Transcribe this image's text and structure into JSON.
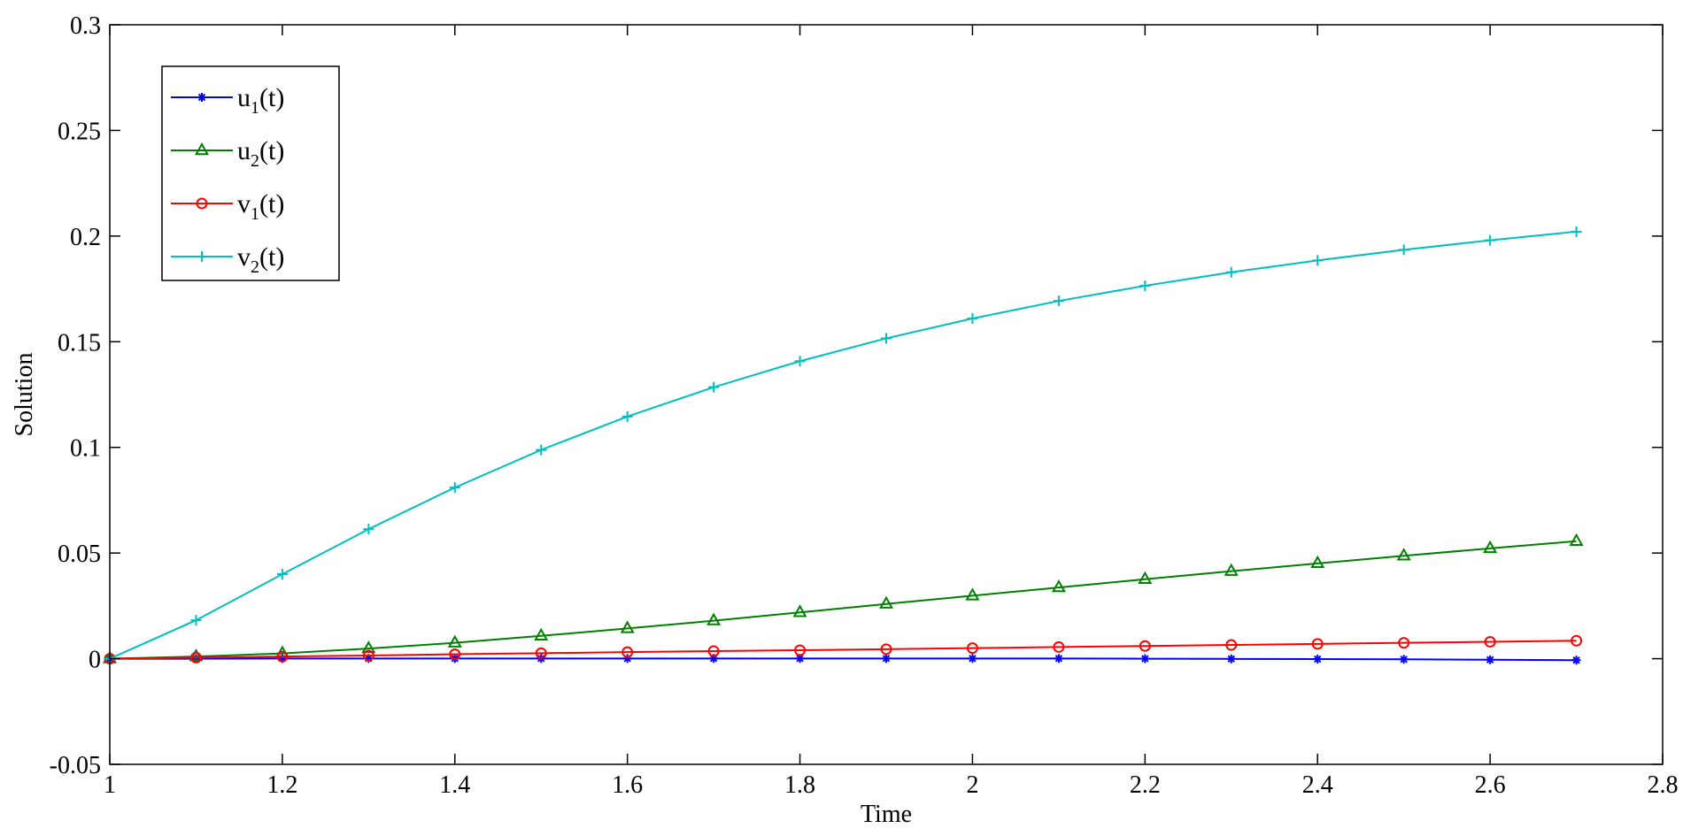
{
  "chart_data": {
    "type": "line",
    "title": "",
    "xlabel": "Time",
    "ylabel": "Solution",
    "xlim": [
      1,
      2.8
    ],
    "ylim": [
      -0.05,
      0.3
    ],
    "xticks": [
      1,
      1.2,
      1.4,
      1.6,
      1.8,
      2,
      2.2,
      2.4,
      2.6,
      2.8
    ],
    "xtick_labels": [
      "1",
      "1.2",
      "1.4",
      "1.6",
      "1.8",
      "2",
      "2.2",
      "2.4",
      "2.6",
      "2.8"
    ],
    "yticks": [
      -0.05,
      0,
      0.05,
      0.1,
      0.15,
      0.2,
      0.25,
      0.3
    ],
    "ytick_labels": [
      "-0.05",
      "0",
      "0.05",
      "0.1",
      "0.15",
      "0.2",
      "0.25",
      "0.3"
    ],
    "grid": false,
    "legend_position": "top-left",
    "x": [
      1.0,
      1.1,
      1.2,
      1.3,
      1.4,
      1.5,
      1.6,
      1.7,
      1.8,
      1.9,
      2.0,
      2.1,
      2.2,
      2.3,
      2.4,
      2.5,
      2.6,
      2.7
    ],
    "series": [
      {
        "name": "u1(t)",
        "label_base": "u",
        "label_sub": "1",
        "label_rest": "(t)",
        "color": "#0000ff",
        "marker": "asterisk",
        "values": [
          0,
          0,
          0.0001,
          0.0001,
          0.0001,
          0.0001,
          0.0001,
          0.0001,
          0.0001,
          0.0001,
          0.0001,
          0.0001,
          0,
          -0.0001,
          -0.0002,
          -0.0003,
          -0.0005,
          -0.0007
        ]
      },
      {
        "name": "u2(t)",
        "label_base": "u",
        "label_sub": "2",
        "label_rest": "(t)",
        "color": "#008000",
        "marker": "triangle",
        "values": [
          0,
          0.001,
          0.0025,
          0.0048,
          0.0075,
          0.0108,
          0.0143,
          0.018,
          0.0219,
          0.0259,
          0.0298,
          0.0337,
          0.0376,
          0.0414,
          0.0451,
          0.0487,
          0.0522,
          0.0556
        ]
      },
      {
        "name": "v1(t)",
        "label_base": "v",
        "label_sub": "1",
        "label_rest": "(t)",
        "color": "#ff0000",
        "marker": "circle",
        "values": [
          0,
          0.0005,
          0.001,
          0.0015,
          0.0021,
          0.0026,
          0.0031,
          0.0036,
          0.004,
          0.0045,
          0.005,
          0.0055,
          0.006,
          0.0065,
          0.007,
          0.0075,
          0.008,
          0.0085
        ]
      },
      {
        "name": "v2(t)",
        "label_base": "v",
        "label_sub": "2",
        "label_rest": "(t)",
        "color": "#00bfbf",
        "marker": "plus",
        "values": [
          0,
          0.0182,
          0.04,
          0.0613,
          0.081,
          0.0988,
          0.1146,
          0.1285,
          0.1408,
          0.1516,
          0.161,
          0.1693,
          0.1765,
          0.1829,
          0.1885,
          0.1935,
          0.198,
          0.2021
        ]
      }
    ]
  }
}
